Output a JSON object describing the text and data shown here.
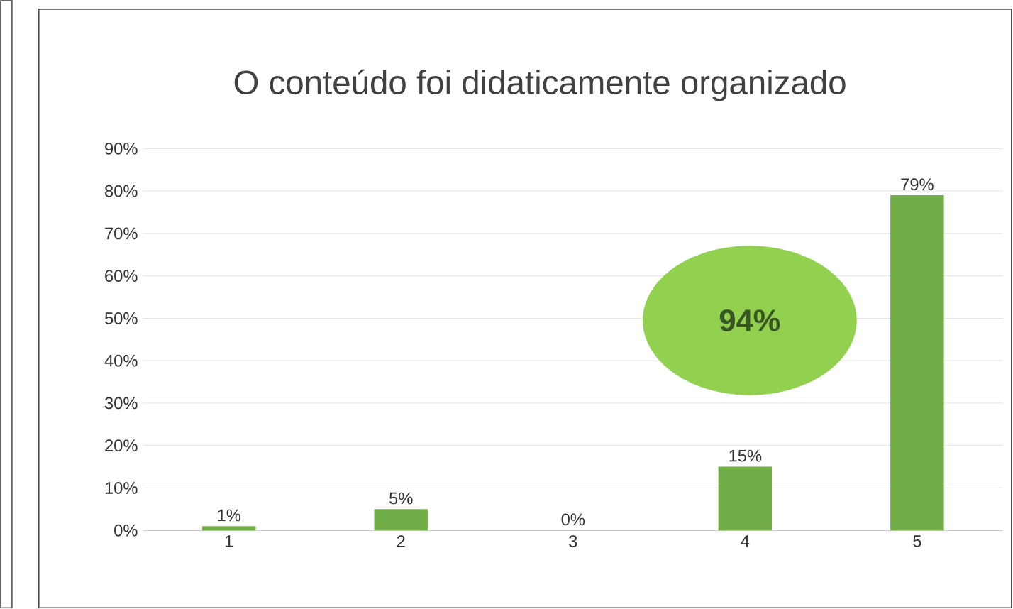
{
  "chart_data": {
    "type": "bar",
    "title": "O conteúdo foi didaticamente organizado",
    "categories": [
      "1",
      "2",
      "3",
      "4",
      "5"
    ],
    "values": [
      1,
      5,
      0,
      15,
      79
    ],
    "value_labels": [
      "1%",
      "5%",
      "0%",
      "15%",
      "79%"
    ],
    "color": "#70ad47",
    "ylim": [
      0,
      90
    ],
    "yticks": [
      {
        "value": 0,
        "label": "0%"
      },
      {
        "value": 10,
        "label": "10%"
      },
      {
        "value": 20,
        "label": "20%"
      },
      {
        "value": 30,
        "label": "30%"
      },
      {
        "value": 40,
        "label": "40%"
      },
      {
        "value": 50,
        "label": "50%"
      },
      {
        "value": 60,
        "label": "60%"
      },
      {
        "value": 70,
        "label": "70%"
      },
      {
        "value": 80,
        "label": "80%"
      },
      {
        "value": 90,
        "label": "90%"
      }
    ],
    "grid": "y",
    "annotations": [
      "94%"
    ]
  }
}
